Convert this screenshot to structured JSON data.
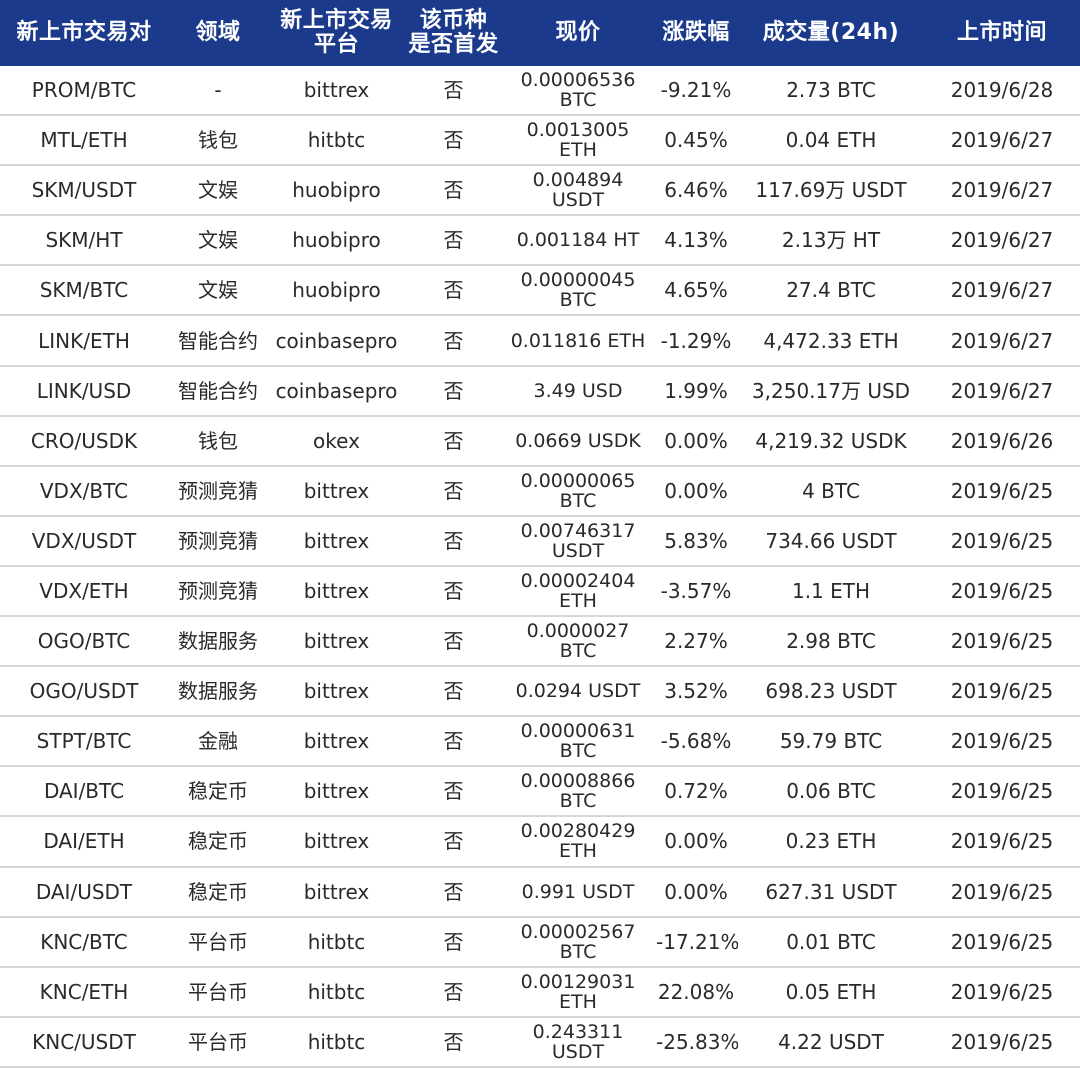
{
  "headers": [
    "新上市交易对",
    "领域",
    "新上市交易\n平台",
    "该币种\n是否首发",
    "现价",
    "涨跌幅",
    "成交量(24h)",
    "上市时间"
  ],
  "rows": [
    {
      "pair": "PROM/BTC",
      "sector": "-",
      "platform": "bittrex",
      "first": "否",
      "price": "0.00006536\nBTC",
      "change": "-9.21%",
      "volume": "2.73 BTC",
      "date": "2019/6/28"
    },
    {
      "pair": "MTL/ETH",
      "sector": "钱包",
      "platform": "hitbtc",
      "first": "否",
      "price": "0.0013005\nETH",
      "change": "0.45%",
      "volume": "0.04 ETH",
      "date": "2019/6/27"
    },
    {
      "pair": "SKM/USDT",
      "sector": "文娱",
      "platform": "huobipro",
      "first": "否",
      "price": "0.004894\nUSDT",
      "change": "6.46%",
      "volume": "117.69万 USDT",
      "date": "2019/6/27"
    },
    {
      "pair": "SKM/HT",
      "sector": "文娱",
      "platform": "huobipro",
      "first": "否",
      "price": "0.001184 HT",
      "change": "4.13%",
      "volume": "2.13万 HT",
      "date": "2019/6/27"
    },
    {
      "pair": "SKM/BTC",
      "sector": "文娱",
      "platform": "huobipro",
      "first": "否",
      "price": "0.00000045\nBTC",
      "change": "4.65%",
      "volume": "27.4 BTC",
      "date": "2019/6/27"
    },
    {
      "pair": "LINK/ETH",
      "sector": "智能合约",
      "platform": "coinbasepro",
      "first": "否",
      "price": "0.011816 ETH",
      "change": "-1.29%",
      "volume": "4,472.33 ETH",
      "date": "2019/6/27"
    },
    {
      "pair": "LINK/USD",
      "sector": "智能合约",
      "platform": "coinbasepro",
      "first": "否",
      "price": "3.49 USD",
      "change": "1.99%",
      "volume": "3,250.17万 USD",
      "date": "2019/6/27"
    },
    {
      "pair": "CRO/USDK",
      "sector": "钱包",
      "platform": "okex",
      "first": "否",
      "price": "0.0669 USDK",
      "change": "0.00%",
      "volume": "4,219.32 USDK",
      "date": "2019/6/26"
    },
    {
      "pair": "VDX/BTC",
      "sector": "预测竞猜",
      "platform": "bittrex",
      "first": "否",
      "price": "0.00000065\nBTC",
      "change": "0.00%",
      "volume": "4 BTC",
      "date": "2019/6/25"
    },
    {
      "pair": "VDX/USDT",
      "sector": "预测竞猜",
      "platform": "bittrex",
      "first": "否",
      "price": "0.00746317\nUSDT",
      "change": "5.83%",
      "volume": "734.66 USDT",
      "date": "2019/6/25"
    },
    {
      "pair": "VDX/ETH",
      "sector": "预测竞猜",
      "platform": "bittrex",
      "first": "否",
      "price": "0.00002404\nETH",
      "change": "-3.57%",
      "volume": "1.1 ETH",
      "date": "2019/6/25"
    },
    {
      "pair": "OGO/BTC",
      "sector": "数据服务",
      "platform": "bittrex",
      "first": "否",
      "price": "0.0000027\nBTC",
      "change": "2.27%",
      "volume": "2.98  BTC",
      "date": "2019/6/25"
    },
    {
      "pair": "OGO/USDT",
      "sector": "数据服务",
      "platform": "bittrex",
      "first": "否",
      "price": "0.0294 USDT",
      "change": "3.52%",
      "volume": "698.23 USDT",
      "date": "2019/6/25"
    },
    {
      "pair": "STPT/BTC",
      "sector": "金融",
      "platform": "bittrex",
      "first": "否",
      "price": "0.00000631\nBTC",
      "change": "-5.68%",
      "volume": "59.79 BTC",
      "date": "2019/6/25"
    },
    {
      "pair": "DAI/BTC",
      "sector": "稳定币",
      "platform": "bittrex",
      "first": "否",
      "price": "0.00008866\nBTC",
      "change": "0.72%",
      "volume": "0.06 BTC",
      "date": "2019/6/25"
    },
    {
      "pair": "DAI/ETH",
      "sector": "稳定币",
      "platform": "bittrex",
      "first": "否",
      "price": "0.00280429\nETH",
      "change": "0.00%",
      "volume": "0.23 ETH",
      "date": "2019/6/25"
    },
    {
      "pair": "DAI/USDT",
      "sector": "稳定币",
      "platform": "bittrex",
      "first": "否",
      "price": "0.991 USDT",
      "change": "0.00%",
      "volume": "627.31 USDT",
      "date": "2019/6/25"
    },
    {
      "pair": "KNC/BTC",
      "sector": "平台币",
      "platform": "hitbtc",
      "first": "否",
      "price": "0.00002567\nBTC",
      "change": "-17.21%",
      "volume": "0.01 BTC",
      "date": "2019/6/25"
    },
    {
      "pair": "KNC/ETH",
      "sector": "平台币",
      "platform": "hitbtc",
      "first": "否",
      "price": "0.00129031\nETH",
      "change": "22.08%",
      "volume": "0.05 ETH",
      "date": "2019/6/25"
    },
    {
      "pair": "KNC/USDT",
      "sector": "平台币",
      "platform": "hitbtc",
      "first": "否",
      "price": "0.243311\nUSDT",
      "change": "-25.83%",
      "volume": "4.22 USDT",
      "date": "2019/6/25"
    }
  ],
  "colors": {
    "header_bg": "#1b3a8c",
    "header_text": "#ffffff",
    "row_divider": "#d6d6d6",
    "body_text": "#2a2a2a"
  }
}
